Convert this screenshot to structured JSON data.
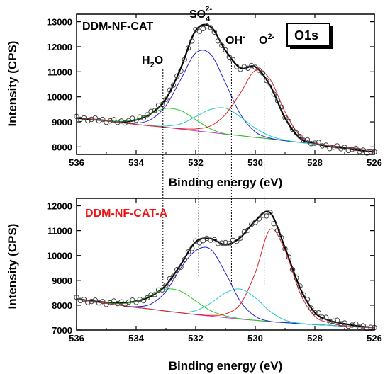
{
  "chart_data": [
    {
      "type": "line",
      "title": "DDM-NF-CAT",
      "title_color": "#000000",
      "xlabel": "Binding energy (eV)",
      "ylabel": "Intensity (CPS)",
      "xlim": [
        536,
        526
      ],
      "ylim": [
        7700,
        13300
      ],
      "xticks": [
        536,
        534,
        532,
        530,
        528,
        526
      ],
      "yticks": [
        8000,
        9000,
        10000,
        11000,
        12000,
        13000
      ],
      "x": [
        536,
        535.5,
        535,
        534.5,
        534,
        533.5,
        533,
        532.5,
        532,
        531.5,
        531,
        530.5,
        530,
        529.5,
        529,
        528.5,
        528,
        527.5,
        527,
        526.5,
        526
      ],
      "series": [
        {
          "role": "measured",
          "style": "circles",
          "color": "#444444",
          "values": [
            9150,
            9100,
            9050,
            9000,
            9100,
            9350,
            9900,
            11100,
            12650,
            12800,
            11800,
            11100,
            11250,
            10500,
            9200,
            8350,
            8150,
            8000,
            7950,
            7850,
            7800
          ]
        },
        {
          "role": "fit-envelope",
          "style": "line",
          "color": "#000000",
          "values": [
            9150,
            9100,
            9050,
            8990,
            9080,
            9330,
            9920,
            11150,
            12650,
            12800,
            11850,
            11150,
            11200,
            10450,
            9150,
            8350,
            8130,
            8020,
            7950,
            7860,
            7800
          ]
        },
        {
          "role": "baseline",
          "style": "line",
          "color": "#cc33cc",
          "values": [
            9180,
            9110,
            9040,
            8970,
            8900,
            8840,
            8780,
            8710,
            8640,
            8580,
            8510,
            8450,
            8380,
            8320,
            8250,
            8180,
            8120,
            8050,
            7990,
            7930,
            7860
          ]
        },
        {
          "role": "component",
          "style": "line",
          "color": "#22cc22",
          "center": 533.0,
          "values": [
            9180,
            9110,
            9050,
            9020,
            9100,
            9330,
            9540,
            9450,
            9090,
            8720,
            8520,
            8450,
            8380,
            8320,
            8250,
            8180,
            8120,
            8050,
            7990,
            7930,
            7860
          ]
        },
        {
          "role": "component",
          "style": "line",
          "color": "#2222cc",
          "center": 531.9,
          "values": [
            9180,
            9110,
            9040,
            8980,
            8950,
            9100,
            9650,
            10700,
            11750,
            11700,
            10550,
            9300,
            8600,
            8350,
            8250,
            8180,
            8120,
            8050,
            7990,
            7930,
            7860
          ]
        },
        {
          "role": "component",
          "style": "line",
          "color": "#22cccc",
          "center": 531.2,
          "values": [
            9180,
            9110,
            9040,
            8970,
            8900,
            8850,
            8830,
            8920,
            9210,
            9500,
            9550,
            9200,
            8750,
            8440,
            8270,
            8180,
            8120,
            8050,
            7990,
            7930,
            7860
          ]
        },
        {
          "role": "component",
          "style": "line",
          "color": "#dd2222",
          "center": 530.0,
          "values": [
            9180,
            9110,
            9040,
            8970,
            8900,
            8840,
            8780,
            8730,
            8720,
            8840,
            9300,
            10150,
            11050,
            10700,
            9400,
            8450,
            8160,
            8060,
            7990,
            7930,
            7860
          ]
        }
      ],
      "markers": [
        {
          "label": "H2O",
          "x": 533.1
        },
        {
          "label": "SO42-",
          "x": 531.9
        },
        {
          "label": "OH-",
          "x": 530.8
        },
        {
          "label": "O2-",
          "x": 529.7
        }
      ],
      "badge": "O1s"
    },
    {
      "type": "line",
      "title": "DDM-NF-CAT-A",
      "title_color": "#ee1111",
      "xlabel": "Binding energy (eV)",
      "ylabel": "Intensity (CPS)",
      "xlim": [
        536,
        526
      ],
      "ylim": [
        7000,
        12300
      ],
      "xticks": [
        536,
        534,
        532,
        530,
        528,
        526
      ],
      "yticks": [
        7000,
        8000,
        9000,
        10000,
        11000,
        12000
      ],
      "x": [
        536,
        535.5,
        535,
        534.5,
        534,
        533.5,
        533,
        532.5,
        532,
        531.5,
        531,
        530.5,
        530,
        529.5,
        529,
        528.5,
        528,
        527.5,
        527,
        526.5,
        526
      ],
      "series": [
        {
          "role": "measured",
          "style": "circles",
          "color": "#444444",
          "values": [
            8250,
            8150,
            8100,
            8100,
            8150,
            8350,
            8800,
            9600,
            10550,
            10650,
            10450,
            10700,
            11400,
            11700,
            10300,
            8700,
            7700,
            7400,
            7250,
            7150,
            7100
          ]
        },
        {
          "role": "fit-envelope",
          "style": "line",
          "color": "#000000",
          "values": [
            8250,
            8170,
            8110,
            8090,
            8160,
            8360,
            8800,
            9640,
            10550,
            10680,
            10430,
            10720,
            11400,
            11720,
            10300,
            8700,
            7700,
            7380,
            7250,
            7150,
            7100
          ]
        },
        {
          "role": "baseline",
          "style": "line",
          "color": "#cc33cc",
          "values": [
            8250,
            8150,
            8070,
            7990,
            7910,
            7840,
            7760,
            7690,
            7620,
            7560,
            7500,
            7440,
            7390,
            7340,
            7300,
            7260,
            7220,
            7190,
            7150,
            7120,
            7100
          ]
        },
        {
          "role": "component",
          "style": "line",
          "color": "#22cc22",
          "center": 533.0,
          "values": [
            8250,
            8160,
            8090,
            8060,
            8150,
            8400,
            8650,
            8560,
            8170,
            7780,
            7570,
            7460,
            7390,
            7340,
            7300,
            7260,
            7220,
            7190,
            7150,
            7120,
            7100
          ]
        },
        {
          "role": "component",
          "style": "line",
          "color": "#2222cc",
          "center": 531.7,
          "values": [
            8250,
            8150,
            8070,
            7990,
            7940,
            8050,
            8550,
            9500,
            10200,
            10250,
            9300,
            8150,
            7550,
            7350,
            7300,
            7260,
            7220,
            7190,
            7150,
            7120,
            7100
          ]
        },
        {
          "role": "component",
          "style": "line",
          "color": "#22cccc",
          "center": 530.6,
          "values": [
            8250,
            8150,
            8070,
            7990,
            7910,
            7840,
            7770,
            7720,
            7780,
            8080,
            8500,
            8650,
            8300,
            7750,
            7400,
            7270,
            7220,
            7190,
            7150,
            7120,
            7100
          ]
        },
        {
          "role": "component",
          "style": "line",
          "color": "#dd2222",
          "center": 529.6,
          "values": [
            8250,
            8150,
            8070,
            7990,
            7910,
            7840,
            7760,
            7690,
            7630,
            7590,
            7650,
            8050,
            9300,
            11050,
            10200,
            8500,
            7550,
            7290,
            7160,
            7120,
            7100
          ]
        }
      ],
      "markers": []
    }
  ]
}
